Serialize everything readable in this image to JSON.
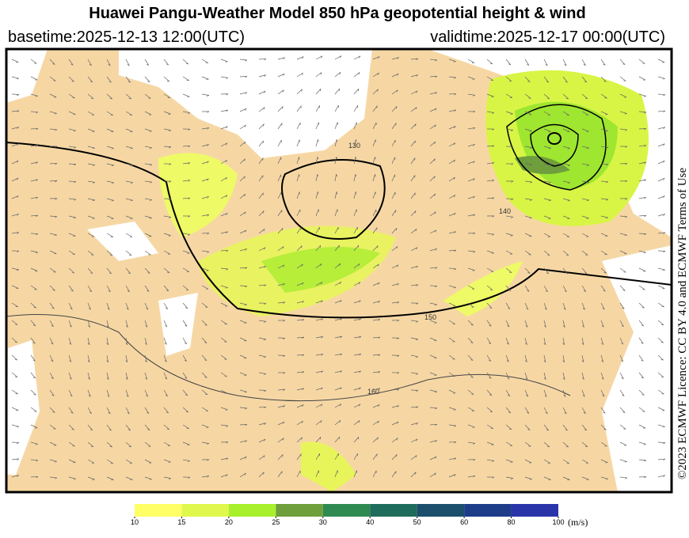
{
  "header": {
    "title": "Huawei Pangu-Weather Model 850 hPa geopotential height & wind",
    "basetime": "basetime:2025-12-13 12:00(UTC)",
    "validtime": "validtime:2025-12-17 00:00(UTC)"
  },
  "licence": "©2023 ECMWF Licence: CC BY 4.0 and ECMWF Terms of Use",
  "contour_labels": [
    "130",
    "140",
    "150",
    "160"
  ],
  "colorbar": {
    "ticks": [
      10,
      15,
      20,
      25,
      30,
      40,
      50,
      60,
      80,
      100
    ],
    "colors": [
      "#ffff66",
      "#e0f84c",
      "#a8f02c",
      "#6f9e3c",
      "#2f8a52",
      "#1e6c5b",
      "#1b4f6b",
      "#1e3d88",
      "#2b35aa"
    ],
    "unit": "(m/s)"
  }
}
